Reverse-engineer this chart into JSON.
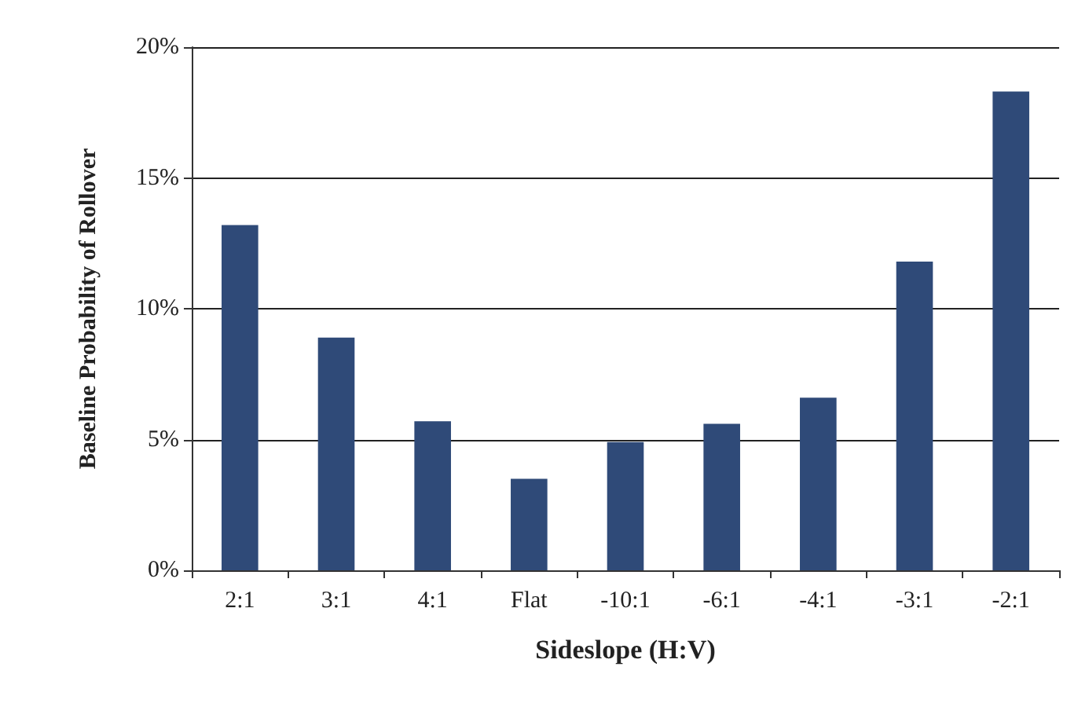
{
  "chart_data": {
    "type": "bar",
    "xlabel": "Sideslope (H:V)",
    "ylabel": "Baseline Probability of Rollover",
    "categories": [
      "2:1",
      "3:1",
      "4:1",
      "Flat",
      "-10:1",
      "-6:1",
      "-4:1",
      "-3:1",
      "-2:1"
    ],
    "values": [
      13.2,
      8.9,
      5.7,
      3.5,
      4.9,
      5.6,
      6.6,
      11.8,
      18.3
    ],
    "color": "#2f4a78",
    "ylim": [
      0,
      20
    ],
    "yticks": [
      {
        "value": 0,
        "label": "0%"
      },
      {
        "value": 5,
        "label": "5%"
      },
      {
        "value": 10,
        "label": "10%"
      },
      {
        "value": 15,
        "label": "15%"
      },
      {
        "value": 20,
        "label": "20%"
      }
    ],
    "grid": "y"
  }
}
